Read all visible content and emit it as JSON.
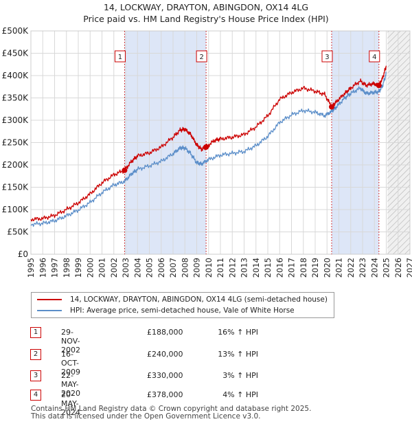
{
  "chart_data": {
    "type": "line",
    "title": "14, LOCKWAY, DRAYTON, ABINGDON, OX14 4LG",
    "subtitle": "Price paid vs. HM Land Registry's House Price Index (HPI)",
    "xlabel": "",
    "ylabel": "",
    "xlim": [
      1995,
      2027
    ],
    "ylim": [
      0,
      500000
    ],
    "x_ticks": [
      "1995",
      "1996",
      "1997",
      "1998",
      "1999",
      "2000",
      "2001",
      "2002",
      "2003",
      "2004",
      "2005",
      "2006",
      "2007",
      "2008",
      "2009",
      "2010",
      "2011",
      "2012",
      "2013",
      "2014",
      "2015",
      "2016",
      "2017",
      "2018",
      "2019",
      "2020",
      "2021",
      "2022",
      "2023",
      "2024",
      "2025",
      "2026",
      "2027"
    ],
    "y_ticks": [
      {
        "value": 0,
        "label": "£0"
      },
      {
        "value": 50000,
        "label": "£50K"
      },
      {
        "value": 100000,
        "label": "£100K"
      },
      {
        "value": 150000,
        "label": "£150K"
      },
      {
        "value": 200000,
        "label": "£200K"
      },
      {
        "value": 250000,
        "label": "£250K"
      },
      {
        "value": 300000,
        "label": "£300K"
      },
      {
        "value": 350000,
        "label": "£350K"
      },
      {
        "value": 400000,
        "label": "£400K"
      },
      {
        "value": 450000,
        "label": "£450K"
      },
      {
        "value": 500000,
        "label": "£500K"
      }
    ],
    "data_end": 2025.1,
    "series": [
      {
        "name": "14, LOCKWAY, DRAYTON, ABINGDON, OX14 4LG (semi-detached house)",
        "color": "#cc0000",
        "x": [
          1995.0,
          1996.0,
          1997.0,
          1998.0,
          1999.0,
          2000.0,
          2001.0,
          2002.0,
          2002.9,
          2003.5,
          2004.0,
          2005.0,
          2006.0,
          2007.0,
          2007.6,
          2008.0,
          2008.5,
          2009.0,
          2009.4,
          2009.8,
          2010.5,
          2011.0,
          2012.0,
          2013.0,
          2014.0,
          2015.0,
          2016.0,
          2017.0,
          2018.0,
          2019.0,
          2019.8,
          2020.39,
          2020.8,
          2021.5,
          2022.0,
          2022.8,
          2023.3,
          2023.9,
          2024.38,
          2024.7,
          2025.0
        ],
        "y": [
          78000,
          80000,
          87000,
          100000,
          115000,
          135000,
          160000,
          178000,
          188000,
          208000,
          220000,
          227000,
          240000,
          262000,
          278000,
          280000,
          268000,
          245000,
          235000,
          240000,
          255000,
          258000,
          262000,
          268000,
          285000,
          310000,
          347000,
          362000,
          372000,
          365000,
          358000,
          330000,
          342000,
          360000,
          372000,
          388000,
          378000,
          382000,
          378000,
          395000,
          422000
        ]
      },
      {
        "name": "HPI: Average price, semi-detached house, Vale of White Horse",
        "color": "#5b8ec9",
        "x": [
          1995.0,
          1996.0,
          1997.0,
          1998.0,
          1999.0,
          2000.0,
          2001.0,
          2002.0,
          2002.9,
          2003.5,
          2004.0,
          2005.0,
          2006.0,
          2007.0,
          2007.6,
          2008.0,
          2008.5,
          2009.0,
          2009.4,
          2010.0,
          2011.0,
          2012.0,
          2013.0,
          2014.0,
          2015.0,
          2016.0,
          2017.0,
          2018.0,
          2019.0,
          2019.8,
          2020.39,
          2020.8,
          2021.5,
          2022.0,
          2022.8,
          2023.3,
          2023.9,
          2024.38,
          2024.7,
          2025.0
        ],
        "y": [
          67000,
          69000,
          75000,
          86000,
          99000,
          116000,
          138000,
          155000,
          163000,
          180000,
          190000,
          198000,
          208000,
          225000,
          238000,
          238000,
          225000,
          205000,
          202000,
          212000,
          222000,
          226000,
          230000,
          243000,
          264000,
          295000,
          312000,
          322000,
          318000,
          310000,
          320000,
          330000,
          350000,
          360000,
          372000,
          360000,
          362000,
          364000,
          378000,
          405000
        ]
      }
    ],
    "transactions": [
      {
        "id": "1",
        "date": "29-NOV-2002",
        "price": "£188,000",
        "hpi": "16% ↑ HPI",
        "x": 2002.91,
        "y": 188000
      },
      {
        "id": "2",
        "date": "16-OCT-2009",
        "price": "£240,000",
        "hpi": "13% ↑ HPI",
        "x": 2009.79,
        "y": 240000
      },
      {
        "id": "3",
        "date": "22-MAY-2020",
        "price": "£330,000",
        "hpi": "3% ↑ HPI",
        "x": 2020.39,
        "y": 330000
      },
      {
        "id": "4",
        "date": "20-MAY-2024",
        "price": "£378,000",
        "hpi": "4% ↑ HPI",
        "x": 2024.38,
        "y": 378000
      }
    ],
    "shaded_ranges": [
      [
        2002.91,
        2009.79
      ],
      [
        2020.39,
        2024.38
      ]
    ],
    "legend_position": "below-chart"
  },
  "footer": {
    "line1": "Contains HM Land Registry data © Crown copyright and database right 2025.",
    "line2": "This data is licensed under the Open Government Licence v3.0."
  },
  "colors": {
    "price_line": "#cc0000",
    "hpi_line": "#5b8ec9",
    "shade": "#dde6f7",
    "grid": "#d8d8d8"
  }
}
